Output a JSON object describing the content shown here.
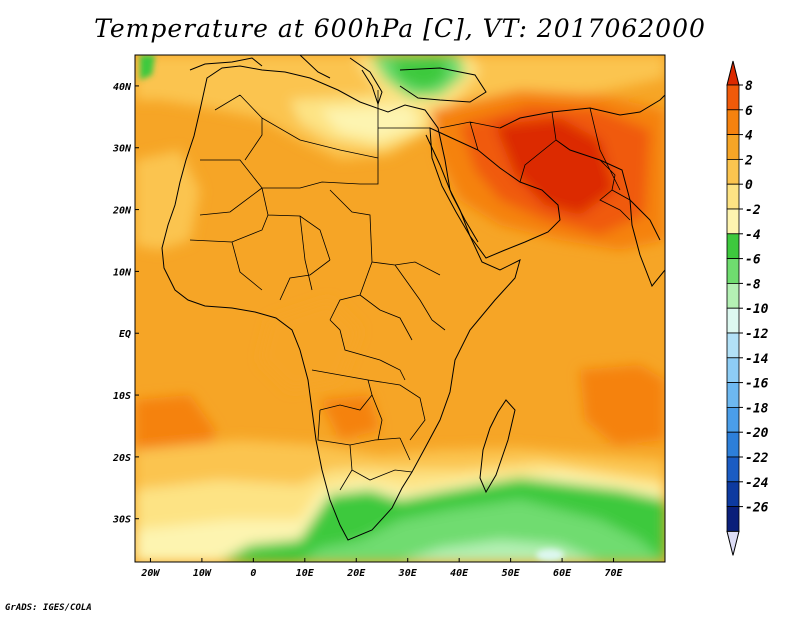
{
  "title": "Temperature at 600hPa [C], VT: 2017062000",
  "credit": "GrADS: IGES/COLA",
  "map": {
    "lon_range": [
      -23,
      80
    ],
    "lat_range": [
      -37,
      45
    ],
    "x_ticks": [
      {
        "lon": -20,
        "label": "20W"
      },
      {
        "lon": -10,
        "label": "10W"
      },
      {
        "lon": 0,
        "label": "0"
      },
      {
        "lon": 10,
        "label": "10E"
      },
      {
        "lon": 20,
        "label": "20E"
      },
      {
        "lon": 30,
        "label": "30E"
      },
      {
        "lon": 40,
        "label": "40E"
      },
      {
        "lon": 50,
        "label": "50E"
      },
      {
        "lon": 60,
        "label": "60E"
      },
      {
        "lon": 70,
        "label": "70E"
      }
    ],
    "y_ticks": [
      {
        "lat": 40,
        "label": "40N"
      },
      {
        "lat": 30,
        "label": "30N"
      },
      {
        "lat": 20,
        "label": "20N"
      },
      {
        "lat": 10,
        "label": "10N"
      },
      {
        "lat": 0,
        "label": "EQ"
      },
      {
        "lat": -10,
        "label": "10S"
      },
      {
        "lat": -20,
        "label": "20S"
      },
      {
        "lat": -30,
        "label": "30S"
      }
    ]
  },
  "colorbar": {
    "labels": [
      "8",
      "6",
      "4",
      "2",
      "0",
      "-2",
      "-4",
      "-6",
      "-8",
      "-10",
      "-12",
      "-14",
      "-16",
      "-18",
      "-20",
      "-22",
      "-24",
      "-26"
    ],
    "colors": [
      "#dc2a00",
      "#f05a0a",
      "#f5820f",
      "#f6a526",
      "#fbc44f",
      "#fde384",
      "#fdf4b0",
      "#3ec93e",
      "#6fdc6f",
      "#b4f0b4",
      "#ddf8f0",
      "#b2e1f7",
      "#8ecdf5",
      "#6db8f0",
      "#4a9ee9",
      "#2d7fd9",
      "#1a5cc3",
      "#0d3aa0",
      "#0a1f7a",
      "#dcdcf5"
    ]
  }
}
